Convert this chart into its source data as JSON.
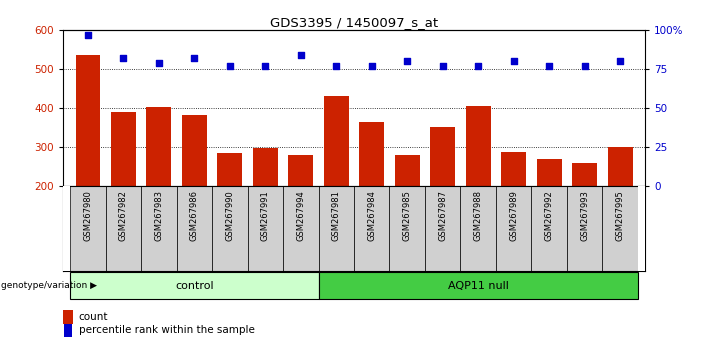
{
  "title": "GDS3395 / 1450097_s_at",
  "categories": [
    "GSM267980",
    "GSM267982",
    "GSM267983",
    "GSM267986",
    "GSM267990",
    "GSM267991",
    "GSM267994",
    "GSM267981",
    "GSM267984",
    "GSM267985",
    "GSM267987",
    "GSM267988",
    "GSM267989",
    "GSM267992",
    "GSM267993",
    "GSM267995"
  ],
  "bar_values": [
    535,
    390,
    403,
    383,
    285,
    297,
    278,
    430,
    365,
    278,
    350,
    405,
    287,
    270,
    258,
    300
  ],
  "dot_values_pct": [
    97,
    82,
    79,
    82,
    77,
    77,
    84,
    77,
    77,
    80,
    77,
    77,
    80,
    77,
    77,
    80
  ],
  "bar_color": "#cc2200",
  "dot_color": "#0000cc",
  "ylim_left": [
    200,
    600
  ],
  "ylim_right": [
    0,
    100
  ],
  "yticks_left": [
    200,
    300,
    400,
    500,
    600
  ],
  "yticks_right": [
    0,
    25,
    50,
    75,
    100
  ],
  "ytick_labels_right": [
    "0",
    "25",
    "50",
    "75",
    "100%"
  ],
  "grid_values": [
    300,
    400,
    500
  ],
  "control_count": 7,
  "control_label": "control",
  "aqp_label": "AQP11 null",
  "genotype_label": "genotype/variation",
  "legend_count": "count",
  "legend_pct": "percentile rank within the sample",
  "control_bg": "#ccffcc",
  "aqp_bg": "#44cc44",
  "tick_label_color_left": "#cc2200",
  "tick_label_color_right": "#0000cc",
  "xtick_bg": "#d0d0d0"
}
